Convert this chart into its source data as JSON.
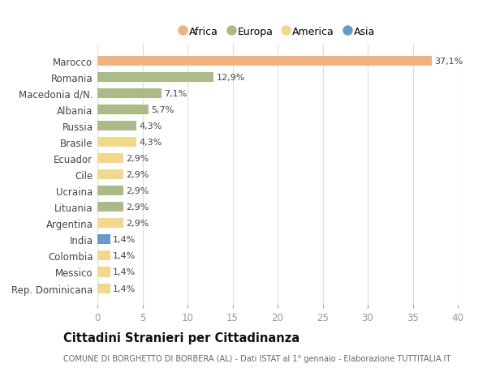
{
  "categories": [
    "Marocco",
    "Romania",
    "Macedonia d/N.",
    "Albania",
    "Russia",
    "Brasile",
    "Ecuador",
    "Cile",
    "Ucraina",
    "Lituania",
    "Argentina",
    "India",
    "Colombia",
    "Messico",
    "Rep. Dominicana"
  ],
  "values": [
    37.1,
    12.9,
    7.1,
    5.7,
    4.3,
    4.3,
    2.9,
    2.9,
    2.9,
    2.9,
    2.9,
    1.4,
    1.4,
    1.4,
    1.4
  ],
  "labels": [
    "37,1%",
    "12,9%",
    "7,1%",
    "5,7%",
    "4,3%",
    "4,3%",
    "2,9%",
    "2,9%",
    "2,9%",
    "2,9%",
    "2,9%",
    "1,4%",
    "1,4%",
    "1,4%",
    "1,4%"
  ],
  "continents": [
    "Africa",
    "Europa",
    "Europa",
    "Europa",
    "Europa",
    "America",
    "America",
    "America",
    "Europa",
    "Europa",
    "America",
    "Asia",
    "America",
    "America",
    "America"
  ],
  "colors": {
    "Africa": "#F2B27E",
    "Europa": "#AABB88",
    "America": "#F2D98A",
    "Asia": "#6699CC"
  },
  "legend_order": [
    "Africa",
    "Europa",
    "America",
    "Asia"
  ],
  "title": "Cittadini Stranieri per Cittadinanza",
  "subtitle": "COMUNE DI BORGHETTO DI BORBERA (AL) - Dati ISTAT al 1° gennaio - Elaborazione TUTTITALIA.IT",
  "xlim": [
    0,
    40
  ],
  "xticks": [
    0,
    5,
    10,
    15,
    20,
    25,
    30,
    35,
    40
  ],
  "background_color": "#ffffff",
  "grid_color": "#dddddd"
}
